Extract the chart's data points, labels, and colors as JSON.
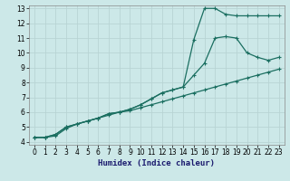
{
  "xlabel": "Humidex (Indice chaleur)",
  "bg_color": "#cce8e8",
  "grid_color": "#b8d4d4",
  "line_color": "#1a6e60",
  "xlim": [
    -0.5,
    23.5
  ],
  "ylim": [
    3.8,
    13.2
  ],
  "xticks": [
    0,
    1,
    2,
    3,
    4,
    5,
    6,
    7,
    8,
    9,
    10,
    11,
    12,
    13,
    14,
    15,
    16,
    17,
    18,
    19,
    20,
    21,
    22,
    23
  ],
  "yticks": [
    4,
    5,
    6,
    7,
    8,
    9,
    10,
    11,
    12,
    13
  ],
  "series1_x": [
    0,
    1,
    2,
    3,
    4,
    5,
    6,
    7,
    8,
    9,
    10,
    11,
    12,
    13,
    14,
    15,
    16,
    17,
    18,
    19,
    20,
    21,
    22,
    23
  ],
  "series1_y": [
    4.3,
    4.3,
    4.4,
    4.9,
    5.2,
    5.4,
    5.6,
    5.8,
    6.0,
    6.1,
    6.3,
    6.5,
    6.7,
    6.9,
    7.1,
    7.3,
    7.5,
    7.7,
    7.9,
    8.1,
    8.3,
    8.5,
    8.7,
    8.9
  ],
  "series2_x": [
    0,
    1,
    2,
    3,
    4,
    5,
    6,
    7,
    8,
    9,
    10,
    11,
    12,
    13,
    14,
    15,
    16,
    17,
    18,
    19,
    20,
    21,
    22,
    23
  ],
  "series2_y": [
    4.3,
    4.3,
    4.5,
    5.0,
    5.2,
    5.4,
    5.6,
    5.9,
    6.0,
    6.2,
    6.5,
    6.9,
    7.3,
    7.5,
    7.7,
    8.5,
    9.3,
    11.0,
    11.1,
    11.0,
    10.0,
    9.7,
    9.5,
    9.7
  ],
  "series3_x": [
    0,
    1,
    2,
    3,
    4,
    5,
    6,
    7,
    8,
    9,
    10,
    11,
    12,
    13,
    14,
    15,
    16,
    17,
    18,
    19,
    20,
    21,
    22,
    23
  ],
  "series3_y": [
    4.3,
    4.3,
    4.5,
    5.0,
    5.2,
    5.4,
    5.6,
    5.9,
    6.0,
    6.2,
    6.5,
    6.9,
    7.3,
    7.5,
    7.7,
    10.9,
    13.0,
    13.0,
    12.6,
    12.5,
    12.5,
    12.5,
    12.5,
    12.5
  ]
}
